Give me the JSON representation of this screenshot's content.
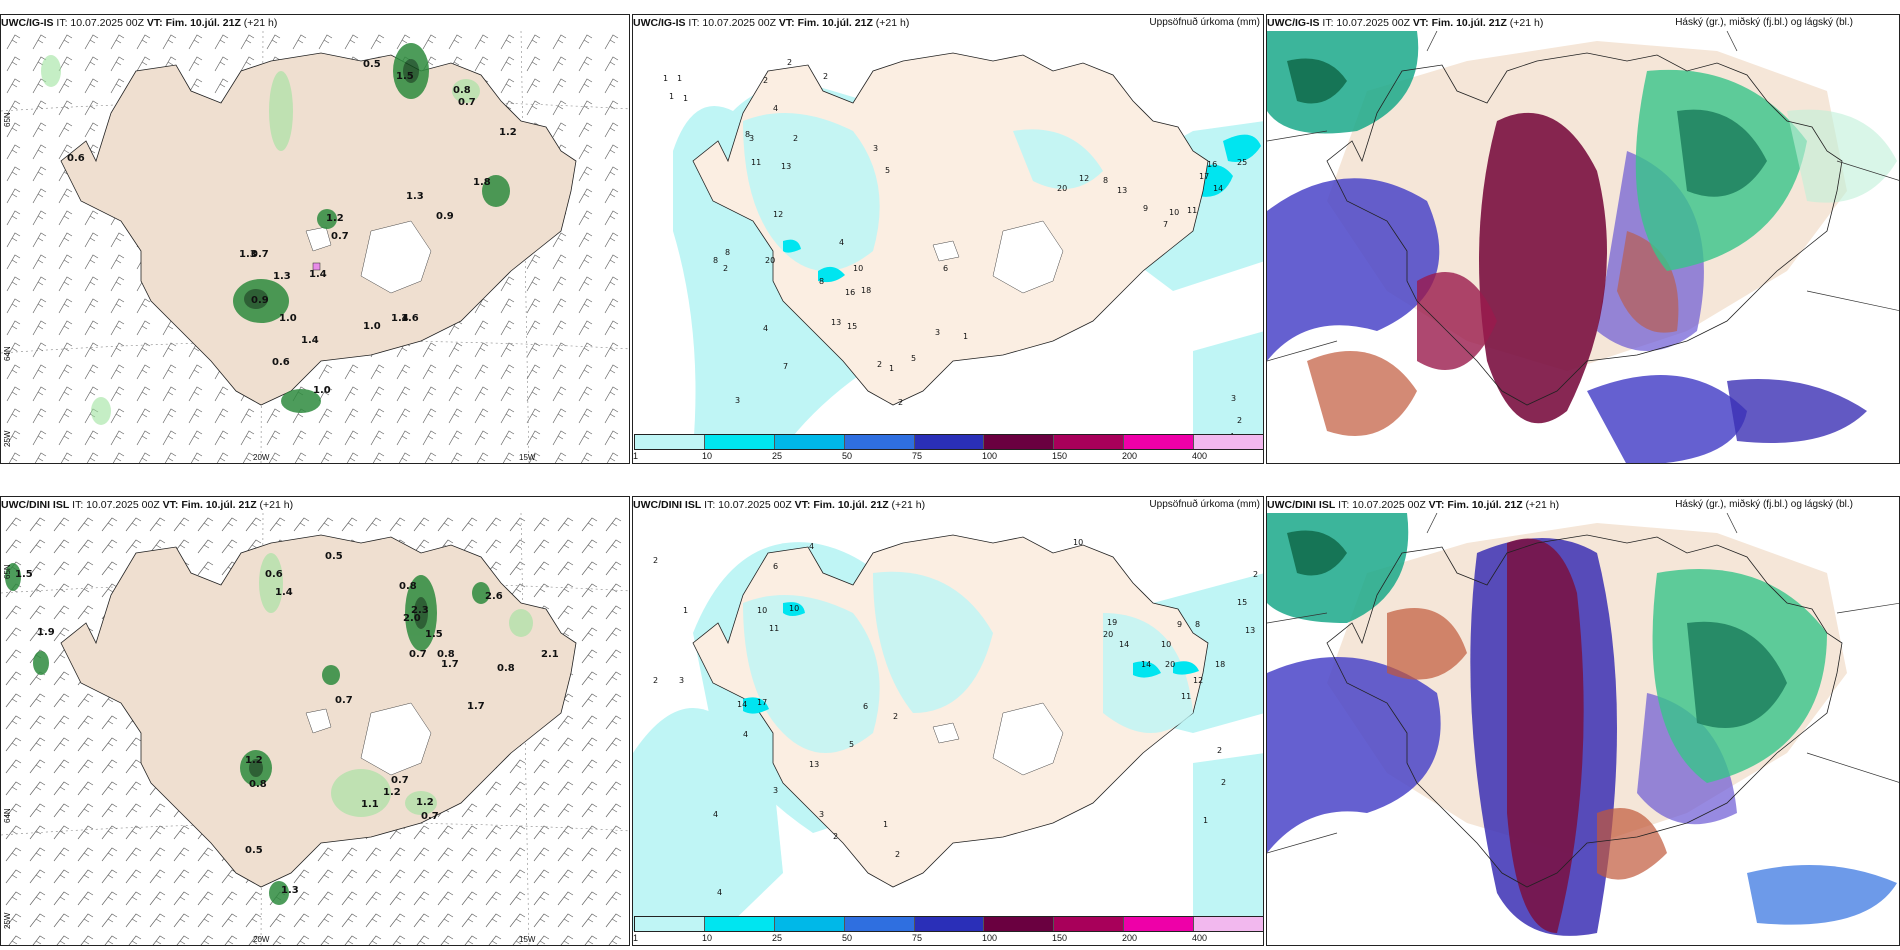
{
  "panels": [
    {
      "id": "r1c1",
      "model": "UWC/IG-IS",
      "it": "IT: 10.07.2025 00Z",
      "vt": "VT: Fim. 10.júl. 21Z",
      "lead": "(+21 h)",
      "right": ""
    },
    {
      "id": "r1c2",
      "model": "UWC/IG-IS",
      "it": "IT: 10.07.2025 00Z",
      "vt": "VT: Fim. 10.júl. 21Z",
      "lead": "(+21 h)",
      "right": "Uppsöfnuð úrkoma (mm)"
    },
    {
      "id": "r1c3",
      "model": "UWC/IG-IS",
      "it": "IT: 10.07.2025 00Z",
      "vt": "VT: Fim. 10.júl. 21Z",
      "lead": "(+21 h)",
      "right": "Háský (gr.), miðský (fj.bl.) og lágský (bl.)"
    },
    {
      "id": "r2c1",
      "model": "UWC/DINI ISL",
      "it": "IT: 10.07.2025 00Z",
      "vt": "VT: Fim. 10.júl. 21Z",
      "lead": "(+21 h)",
      "right": ""
    },
    {
      "id": "r2c2",
      "model": "UWC/DINI ISL",
      "it": "IT: 10.07.2025 00Z",
      "vt": "VT: Fim. 10.júl. 21Z",
      "lead": "(+21 h)",
      "right": "Uppsöfnuð úrkoma (mm)"
    },
    {
      "id": "r2c3",
      "model": "UWC/DINI ISL",
      "it": "IT: 10.07.2025 00Z",
      "vt": "VT: Fim. 10.júl. 21Z",
      "lead": "(+21 h)",
      "right": "Háský (gr.), miðský (fj.bl.) og lágský (bl.)"
    }
  ],
  "axis_labels": {
    "lat_north": "65N",
    "lat_south": "64N",
    "lon_west": "20W",
    "lon_east": "15W",
    "lon_far": "25W"
  },
  "colorbar": {
    "ticks": [
      "1",
      "10",
      "25",
      "50",
      "75",
      "100",
      "150",
      "200",
      "400"
    ],
    "colors": [
      "#bff5f5",
      "#00e5f0",
      "#00b8e8",
      "#2f6fe0",
      "#2a2fb8",
      "#6a0040",
      "#a8005a",
      "#ee00a8",
      "#f2b8ee"
    ]
  },
  "precip_values": {
    "r1c1": [
      "0.5",
      "1.5",
      "0.8",
      "0.7",
      "0.6",
      "1.2",
      "1.8",
      "1.3",
      "0.9",
      "1.2",
      "0.7",
      "1.3",
      "0.7",
      "1.3",
      "0.9",
      "1.4",
      "1.0",
      "1.0",
      "1.4",
      "1.6",
      "1.4",
      "0.6",
      "1.0"
    ],
    "r1c2": [
      "2",
      "1",
      "1",
      "1",
      "1",
      "2",
      "2",
      "4",
      "3",
      "8",
      "11",
      "13",
      "2",
      "12",
      "2",
      "20",
      "8",
      "8",
      "8",
      "3",
      "5",
      "4",
      "10",
      "6",
      "16",
      "18",
      "13",
      "15",
      "7",
      "5",
      "2",
      "3",
      "1",
      "16",
      "17",
      "14",
      "25",
      "20",
      "12",
      "8",
      "13",
      "9",
      "10",
      "11",
      "7",
      "4",
      "2",
      "1",
      "3",
      "4",
      "2",
      "3"
    ],
    "r2c1": [
      "0.5",
      "0.6",
      "1.5",
      "1.4",
      "0.8",
      "2.6",
      "2.3",
      "1.5",
      "0.7",
      "0.8",
      "1.7",
      "0.8",
      "1.9",
      "0.7",
      "1.2",
      "0.8",
      "0.7",
      "1.2",
      "1.2",
      "1.1",
      "0.7",
      "0.5",
      "2.1",
      "1.7",
      "1.3",
      "2.0"
    ],
    "r2c2": [
      "2",
      "4",
      "6",
      "10",
      "10",
      "1",
      "11",
      "2",
      "3",
      "17",
      "14",
      "13",
      "4",
      "6",
      "2",
      "5",
      "10",
      "19",
      "20",
      "14",
      "14",
      "20",
      "18",
      "12",
      "11",
      "10",
      "9",
      "8",
      "15",
      "2",
      "13",
      "2",
      "4",
      "3",
      "1",
      "2",
      "3",
      "2",
      "1",
      "4",
      "2"
    ]
  }
}
